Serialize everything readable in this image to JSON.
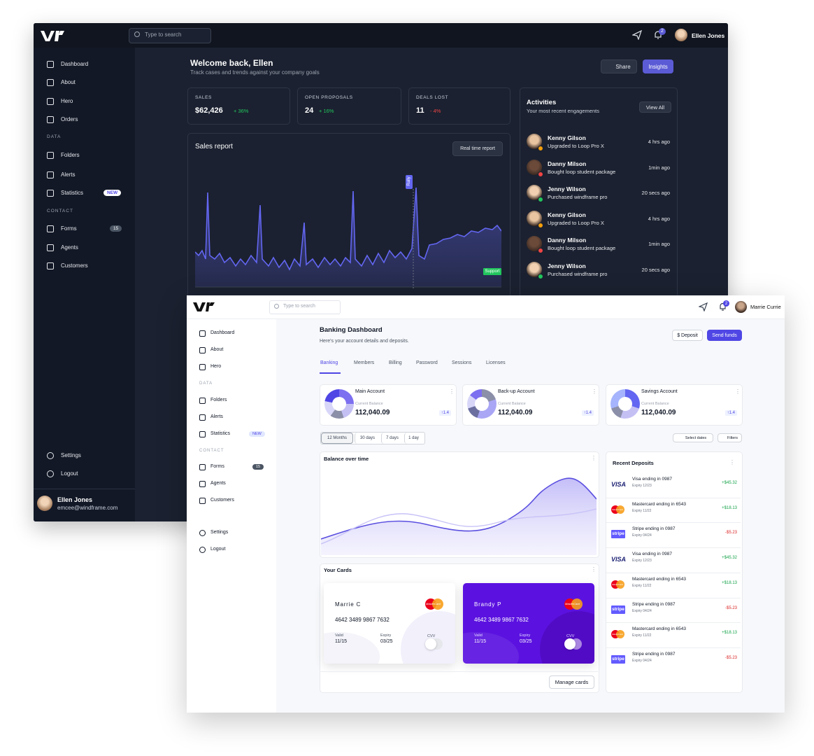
{
  "dark": {
    "search": "Type to search",
    "notifications": "2",
    "user": "Ellen Jones",
    "nav": [
      {
        "label": "Dashboard"
      },
      {
        "label": "About"
      },
      {
        "label": "Hero"
      },
      {
        "label": "Orders"
      },
      {
        "section": "DATA"
      },
      {
        "label": "Folders"
      },
      {
        "label": "Alerts"
      },
      {
        "label": "Statistics",
        "badge": "NEW"
      },
      {
        "section": "CONTACT"
      },
      {
        "label": "Forms",
        "badge": "15"
      },
      {
        "label": "Agents"
      },
      {
        "label": "Customers"
      }
    ],
    "nav_bottom": [
      "Settings",
      "Logout"
    ],
    "profile": {
      "name": "Ellen Jones",
      "email": "emcee@windframe.com"
    },
    "welcome": {
      "title": "Welcome back, Ellen",
      "subtitle": "Track cases and trends against your company goals"
    },
    "buttons": [
      "Share",
      "Insights"
    ],
    "stats": [
      {
        "label": "SALES",
        "value": "$62,426",
        "change": "+ 36%"
      },
      {
        "label": "OPEN PROPOSALS",
        "value": "24",
        "change": "+ 16%"
      },
      {
        "label": "DEALS LOST",
        "value": "11",
        "change": "- 4%"
      }
    ],
    "sales_report": {
      "title": "Sales report",
      "button": "Real time report",
      "markers": [
        "Rally",
        "Support"
      ]
    },
    "activities": {
      "title": "Activities",
      "subtitle": "Your most recent engagements",
      "button": "View All",
      "items": [
        {
          "name": "Kenny Gilson",
          "action": "Upgraded to Loop Pro X",
          "time": "4 hrs ago"
        },
        {
          "name": "Danny Milson",
          "action": "Bought loop student package",
          "time": "1min ago"
        },
        {
          "name": "Jenny Wilson",
          "action": "Purchased windframe pro",
          "time": "20 secs ago"
        },
        {
          "name": "Kenny Gilson",
          "action": "Upgraded to Loop Pro X",
          "time": "4 hrs ago"
        },
        {
          "name": "Danny Milson",
          "action": "Bought loop student package",
          "time": "1min ago"
        },
        {
          "name": "Jenny Wilson",
          "action": "Purchased windframe pro",
          "time": "20 secs ago"
        }
      ]
    }
  },
  "light": {
    "search": "Type to search",
    "notifications": "2",
    "user": "Marrie Currie",
    "nav": [
      {
        "label": "Dashboard"
      },
      {
        "label": "About"
      },
      {
        "label": "Hero"
      },
      {
        "section": "DATA"
      },
      {
        "label": "Folders"
      },
      {
        "label": "Alerts"
      },
      {
        "label": "Statistics",
        "badge": "NEW"
      },
      {
        "section": "CONTACT"
      },
      {
        "label": "Forms",
        "badge": "15"
      },
      {
        "label": "Agents"
      },
      {
        "label": "Customers"
      }
    ],
    "nav_bottom": [
      "Settings",
      "Logout"
    ],
    "title": "Banking Dashboard",
    "subtitle": "Here's your account details and deposits.",
    "buttons": [
      "$ Deposit",
      "Send funds"
    ],
    "tabs": [
      "Banking",
      "Members",
      "Billing",
      "Password",
      "Sessions",
      "Licenses"
    ],
    "accounts": [
      {
        "name": "Main Account",
        "caption": "Current Balance",
        "balance": "112,040.09",
        "change": "↑1.4"
      },
      {
        "name": "Back-up Account",
        "caption": "Current Balance",
        "balance": "112,040.09",
        "change": "↑1.4"
      },
      {
        "name": "Savings Account",
        "caption": "Current Balance",
        "balance": "112,040.09",
        "change": "↑1.4"
      }
    ],
    "ranges": [
      "12 Months",
      "30 days",
      "7 days",
      "1 day"
    ],
    "filters": [
      "Select dates",
      "Filters"
    ],
    "balance_title": "Balance over time",
    "cards_title": "Your Cards",
    "cards": [
      {
        "holder": "Marrie C",
        "number": "4642 3489 9867 7632",
        "valid_label": "Valid",
        "valid": "11/15",
        "expiry_label": "Expiry",
        "expiry": "03/25",
        "cvv_label": "CVV",
        "cvv": "···",
        "brand": "MasterCard"
      },
      {
        "holder": "Brandy P",
        "number": "4642 3489 9867 7632",
        "valid_label": "Valid",
        "valid": "11/15",
        "expiry_label": "Expiry",
        "expiry": "03/25",
        "cvv_label": "CVV",
        "brand": "MasterCard"
      }
    ],
    "manage": "Manage cards",
    "deposits_title": "Recent Deposits",
    "deposits": [
      {
        "brand": "VISA",
        "name": "Visa ending in 0987",
        "expiry": "Expiry 12/23",
        "amount": "+$45.32"
      },
      {
        "brand": "MasterCard",
        "name": "Mastercard ending in 6543",
        "expiry": "Expiry 11/22",
        "amount": "+$18.13"
      },
      {
        "brand": "stripe",
        "name": "Stripe ending in 0987",
        "expiry": "Expiry 04/24",
        "amount": "-$5.23"
      },
      {
        "brand": "VISA",
        "name": "Visa ending in 0987",
        "expiry": "Expiry 12/23",
        "amount": "+$45.32"
      },
      {
        "brand": "MasterCard",
        "name": "Mastercard ending in 6543",
        "expiry": "Expiry 11/22",
        "amount": "+$18.13"
      },
      {
        "brand": "stripe",
        "name": "Stripe ending in 0987",
        "expiry": "Expiry 04/24",
        "amount": "-$5.23"
      },
      {
        "brand": "MasterCard",
        "name": "Mastercard ending in 6543",
        "expiry": "Expiry 11/22",
        "amount": "+$18.13"
      },
      {
        "brand": "stripe",
        "name": "Stripe ending in 0987",
        "expiry": "Expiry 04/24",
        "amount": "-$5.23"
      }
    ]
  }
}
